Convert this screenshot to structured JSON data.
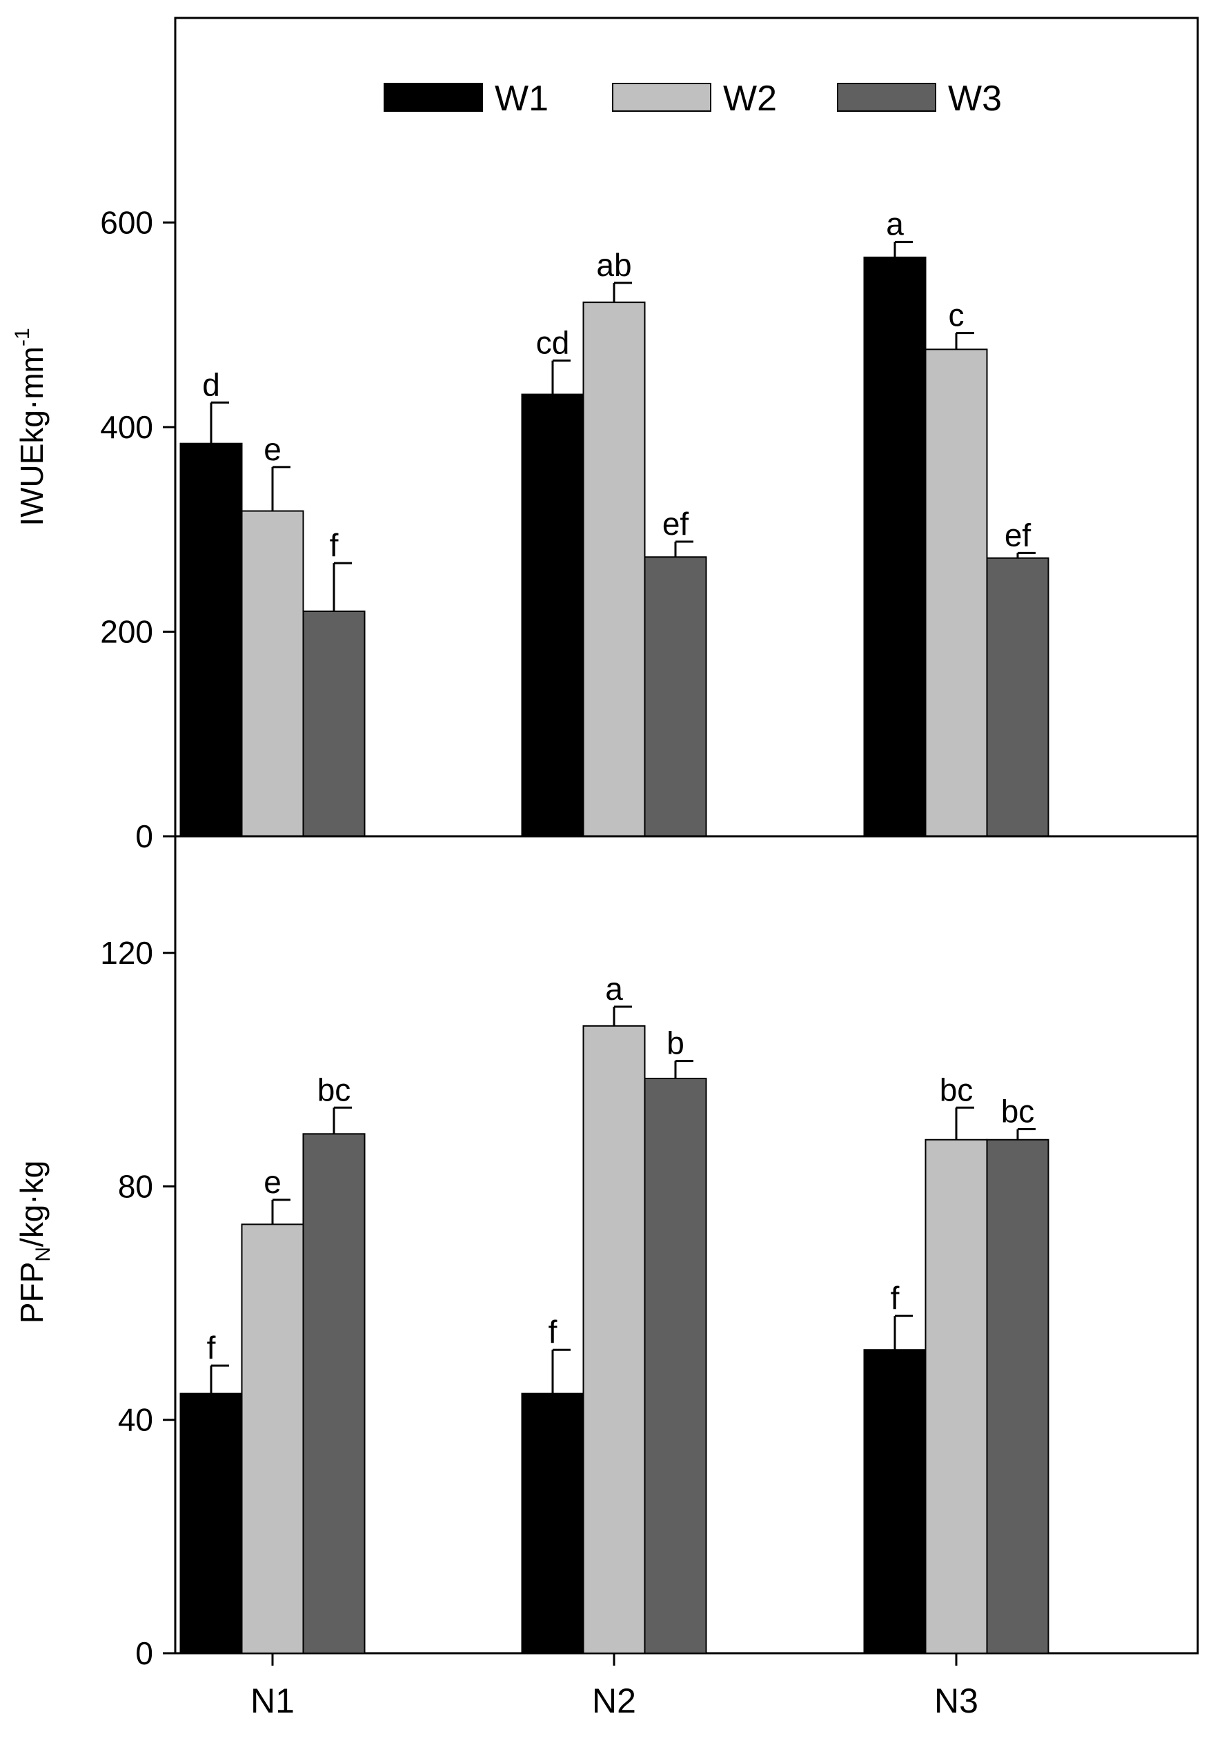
{
  "colors": {
    "W1": "#000000",
    "W2": "#c0c0c0",
    "W3": "#606060",
    "axis": "#000000",
    "background": "#ffffff"
  },
  "legend": {
    "entries": [
      "W1",
      "W2",
      "W3"
    ]
  },
  "chart_data": [
    {
      "type": "bar",
      "panel": "top",
      "ylabel_main": "IWUE",
      "ylabel_unit": "kg·mm",
      "ylabel_sup": "-1",
      "categories": [
        "N1",
        "N2",
        "N3"
      ],
      "ylim": [
        0,
        800
      ],
      "yticks": [
        0,
        200,
        400,
        600
      ],
      "series": [
        {
          "name": "W1",
          "values": [
            384,
            432,
            566
          ],
          "errors": [
            40,
            33,
            15
          ],
          "labels": [
            "d",
            "cd",
            "a"
          ]
        },
        {
          "name": "W2",
          "values": [
            318,
            522,
            476
          ],
          "errors": [
            43,
            19,
            16
          ],
          "labels": [
            "e",
            "ab",
            "c"
          ]
        },
        {
          "name": "W3",
          "values": [
            220,
            273,
            272
          ],
          "errors": [
            47,
            15,
            5
          ],
          "labels": [
            "f",
            "ef",
            "ef"
          ]
        }
      ]
    },
    {
      "type": "bar",
      "panel": "bottom",
      "ylabel_main": "PFP",
      "ylabel_sub": "N",
      "ylabel_unit": "/kg·kg",
      "categories": [
        "N1",
        "N2",
        "N3"
      ],
      "ylim": [
        0,
        140
      ],
      "yticks": [
        0,
        40,
        80,
        120
      ],
      "series": [
        {
          "name": "W1",
          "values": [
            44.5,
            44.5,
            52
          ],
          "errors": [
            4.8,
            7.5,
            5.8
          ],
          "labels": [
            "f",
            "f",
            "f"
          ]
        },
        {
          "name": "W2",
          "values": [
            73.5,
            107.5,
            88
          ],
          "errors": [
            4.2,
            3.3,
            5.5
          ],
          "labels": [
            "e",
            "a",
            "bc"
          ]
        },
        {
          "name": "W3",
          "values": [
            89,
            98.5,
            88
          ],
          "errors": [
            4.5,
            3,
            1.8
          ],
          "labels": [
            "bc",
            "b",
            "bc"
          ]
        }
      ]
    }
  ]
}
